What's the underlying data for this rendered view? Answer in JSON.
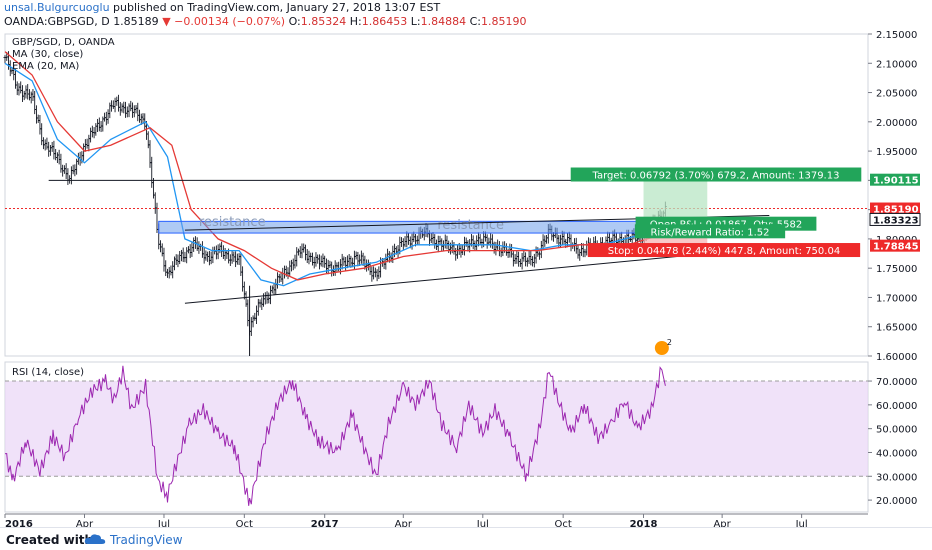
{
  "header": {
    "author": "unsal.Bulgurcuoglu",
    "published_text": "published on TradingView.com, January 27, 2018 13:07 EST",
    "symbol": "OANDA:GBPSGD, D",
    "last": "1.85189",
    "change": "▼ −0.00134 (−0.07%)",
    "ohlc": {
      "o_label": "O:",
      "o": "1.85324",
      "h_label": "H:",
      "h": "1.86453",
      "l_label": "L:",
      "l": "1.84884",
      "c_label": "C:",
      "c": "1.85190"
    }
  },
  "footer": {
    "created": "Created with",
    "brand": "TradingView"
  },
  "colors": {
    "up": "#26a69a",
    "down": "#ef5350",
    "bars": "#131722",
    "ma": "#2196f3",
    "ema": "#e53935",
    "rsi": "#9c27b0",
    "rsi_band": "#e9d5f7",
    "resistance": "#6d9eeb",
    "target": "#22a55a",
    "stop": "#ee2a2a"
  },
  "chart_data": [
    {
      "type": "line",
      "title": "GBP/SGD, D, OANDA",
      "legend": [
        "MA (30, close)",
        "EMA (20, MA)"
      ],
      "y_ticks": [
        "2.15000",
        "2.10000",
        "2.05000",
        "2.00000",
        "1.95000",
        "1.90000",
        "1.85000",
        "1.80000",
        "1.75000",
        "1.70000",
        "1.65000",
        "1.60000"
      ],
      "ylim": [
        1.6,
        2.15
      ],
      "x_ticks": [
        "2016",
        "Apr",
        "Jul",
        "Oct",
        "2017",
        "Apr",
        "Jul",
        "Oct",
        "2018",
        "Apr",
        "Jul"
      ],
      "xlim": [
        "2016-01-01",
        "2018-09-15"
      ],
      "price_points": [
        [
          "2016-01-01",
          2.11
        ],
        [
          "2016-01-15",
          2.06
        ],
        [
          "2016-02-01",
          2.04
        ],
        [
          "2016-02-15",
          1.96
        ],
        [
          "2016-03-01",
          1.94
        ],
        [
          "2016-03-15",
          1.9
        ],
        [
          "2016-04-01",
          1.96
        ],
        [
          "2016-04-20",
          2.0
        ],
        [
          "2016-05-05",
          2.03
        ],
        [
          "2016-05-25",
          2.02
        ],
        [
          "2016-06-10",
          2.0
        ],
        [
          "2016-06-24",
          1.8
        ],
        [
          "2016-07-05",
          1.74
        ],
        [
          "2016-07-20",
          1.77
        ],
        [
          "2016-08-05",
          1.79
        ],
        [
          "2016-08-20",
          1.77
        ],
        [
          "2016-09-05",
          1.78
        ],
        [
          "2016-09-25",
          1.76
        ],
        [
          "2016-10-07",
          1.65
        ],
        [
          "2016-10-20",
          1.69
        ],
        [
          "2016-11-10",
          1.73
        ],
        [
          "2016-12-05",
          1.78
        ],
        [
          "2016-12-25",
          1.76
        ],
        [
          "2017-01-15",
          1.75
        ],
        [
          "2017-02-05",
          1.77
        ],
        [
          "2017-03-01",
          1.74
        ],
        [
          "2017-03-20",
          1.78
        ],
        [
          "2017-04-10",
          1.8
        ],
        [
          "2017-04-25",
          1.81
        ],
        [
          "2017-05-15",
          1.79
        ],
        [
          "2017-06-05",
          1.78
        ],
        [
          "2017-06-25",
          1.8
        ],
        [
          "2017-07-15",
          1.79
        ],
        [
          "2017-08-05",
          1.77
        ],
        [
          "2017-08-25",
          1.76
        ],
        [
          "2017-09-15",
          1.81
        ],
        [
          "2017-10-01",
          1.8
        ],
        [
          "2017-10-20",
          1.78
        ],
        [
          "2017-11-10",
          1.79
        ],
        [
          "2017-12-01",
          1.8
        ],
        [
          "2017-12-20",
          1.8
        ],
        [
          "2018-01-05",
          1.81
        ],
        [
          "2018-01-15",
          1.83
        ],
        [
          "2018-01-26",
          1.852
        ]
      ],
      "ma30_points": [
        [
          "2016-01-01",
          2.1
        ],
        [
          "2016-02-01",
          2.07
        ],
        [
          "2016-03-01",
          1.97
        ],
        [
          "2016-04-01",
          1.93
        ],
        [
          "2016-05-01",
          1.97
        ],
        [
          "2016-06-10",
          2.0
        ],
        [
          "2016-07-05",
          1.94
        ],
        [
          "2016-07-25",
          1.8
        ],
        [
          "2016-08-25",
          1.78
        ],
        [
          "2016-09-25",
          1.78
        ],
        [
          "2016-10-20",
          1.73
        ],
        [
          "2016-11-15",
          1.72
        ],
        [
          "2016-12-15",
          1.74
        ],
        [
          "2017-01-20",
          1.75
        ],
        [
          "2017-03-01",
          1.76
        ],
        [
          "2017-04-15",
          1.79
        ],
        [
          "2017-06-01",
          1.79
        ],
        [
          "2017-07-15",
          1.79
        ],
        [
          "2017-08-25",
          1.78
        ],
        [
          "2017-10-01",
          1.79
        ],
        [
          "2017-11-15",
          1.79
        ],
        [
          "2018-01-05",
          1.81
        ],
        [
          "2018-01-26",
          1.82
        ]
      ],
      "ema20_points": [
        [
          "2016-01-01",
          2.12
        ],
        [
          "2016-02-01",
          2.08
        ],
        [
          "2016-03-01",
          2.0
        ],
        [
          "2016-04-01",
          1.95
        ],
        [
          "2016-05-01",
          1.96
        ],
        [
          "2016-06-15",
          1.99
        ],
        [
          "2016-07-10",
          1.96
        ],
        [
          "2016-08-01",
          1.85
        ],
        [
          "2016-09-01",
          1.8
        ],
        [
          "2016-10-01",
          1.78
        ],
        [
          "2016-11-01",
          1.75
        ],
        [
          "2016-12-01",
          1.73
        ],
        [
          "2017-01-01",
          1.74
        ],
        [
          "2017-02-15",
          1.75
        ],
        [
          "2017-04-01",
          1.77
        ],
        [
          "2017-05-20",
          1.78
        ],
        [
          "2017-07-15",
          1.78
        ],
        [
          "2017-09-01",
          1.78
        ],
        [
          "2017-10-20",
          1.79
        ],
        [
          "2017-12-15",
          1.79
        ],
        [
          "2018-01-26",
          1.81
        ]
      ],
      "levels": [
        {
          "label": "1.90115",
          "value": 1.90115,
          "color": "#22a55a"
        },
        {
          "label": "1.85190",
          "value": 1.8519,
          "color": "#ee2a2a"
        },
        {
          "label": "1.83323",
          "value": 1.83323,
          "color": "#131722"
        },
        {
          "label": "1.78845",
          "value": 1.78845,
          "color": "#ee2a2a"
        }
      ],
      "horizontal_line": {
        "from": "2016-02-20",
        "to": "2018-08-15",
        "value": 1.9
      },
      "resistance_zone": {
        "from": "2016-06-25",
        "to": "2018-01-15",
        "y_low": 1.81,
        "y_high": 1.83,
        "labels": [
          "resistance",
          "resistance"
        ]
      },
      "trendlines": [
        {
          "from": [
            "2016-07-25",
            1.815
          ],
          "to": [
            "2018-05-25",
            1.84
          ]
        },
        {
          "from": [
            "2016-07-25",
            1.69
          ],
          "to": [
            "2018-04-20",
            1.78
          ]
        }
      ],
      "position": {
        "target": "Target: 0.06792 (3.70%) 679.2, Amount: 1379.13",
        "open_pnl": "Open P&L: 0.01867, Qty: 5582",
        "risk_reward": "Risk/Reward Ratio: 1.52",
        "stop": "Stop: 0.04478 (2.44%) 447.8, Amount: 750.04",
        "entry": 1.83323,
        "target_price": 1.90115,
        "stop_price": 1.78845,
        "from": "2018-01-01",
        "to": "2018-03-15"
      },
      "event_badge": "2"
    },
    {
      "type": "line",
      "title": "RSI (14, close)",
      "y_ticks": [
        "70.0000",
        "60.0000",
        "50.0000",
        "40.0000",
        "30.0000",
        "20.0000"
      ],
      "ylim": [
        15,
        78
      ],
      "band": [
        30,
        70
      ],
      "xlim": [
        "2016-01-01",
        "2018-09-15"
      ],
      "rsi_points": [
        [
          "2016-01-01",
          40
        ],
        [
          "2016-01-10",
          28
        ],
        [
          "2016-01-25",
          45
        ],
        [
          "2016-02-10",
          32
        ],
        [
          "2016-02-25",
          47
        ],
        [
          "2016-03-10",
          38
        ],
        [
          "2016-03-25",
          55
        ],
        [
          "2016-04-10",
          66
        ],
        [
          "2016-04-25",
          70
        ],
        [
          "2016-05-05",
          62
        ],
        [
          "2016-05-15",
          74
        ],
        [
          "2016-05-25",
          58
        ],
        [
          "2016-06-10",
          68
        ],
        [
          "2016-06-24",
          28
        ],
        [
          "2016-07-05",
          22
        ],
        [
          "2016-07-15",
          35
        ],
        [
          "2016-07-30",
          52
        ],
        [
          "2016-08-15",
          58
        ],
        [
          "2016-09-01",
          48
        ],
        [
          "2016-09-20",
          42
        ],
        [
          "2016-10-07",
          18
        ],
        [
          "2016-10-25",
          46
        ],
        [
          "2016-11-10",
          62
        ],
        [
          "2016-11-25",
          70
        ],
        [
          "2016-12-10",
          55
        ],
        [
          "2016-12-25",
          45
        ],
        [
          "2017-01-15",
          40
        ],
        [
          "2017-02-01",
          56
        ],
        [
          "2017-02-15",
          42
        ],
        [
          "2017-03-01",
          30
        ],
        [
          "2017-03-15",
          52
        ],
        [
          "2017-04-01",
          68
        ],
        [
          "2017-04-15",
          60
        ],
        [
          "2017-05-01",
          70
        ],
        [
          "2017-05-15",
          52
        ],
        [
          "2017-06-01",
          42
        ],
        [
          "2017-06-15",
          60
        ],
        [
          "2017-07-01",
          48
        ],
        [
          "2017-07-15",
          58
        ],
        [
          "2017-08-01",
          46
        ],
        [
          "2017-08-20",
          30
        ],
        [
          "2017-09-05",
          52
        ],
        [
          "2017-09-15",
          75
        ],
        [
          "2017-09-25",
          62
        ],
        [
          "2017-10-10",
          48
        ],
        [
          "2017-10-25",
          60
        ],
        [
          "2017-11-10",
          46
        ],
        [
          "2017-11-25",
          52
        ],
        [
          "2017-12-10",
          62
        ],
        [
          "2017-12-25",
          50
        ],
        [
          "2018-01-10",
          58
        ],
        [
          "2018-01-22",
          76
        ],
        [
          "2018-01-26",
          68
        ]
      ]
    }
  ]
}
